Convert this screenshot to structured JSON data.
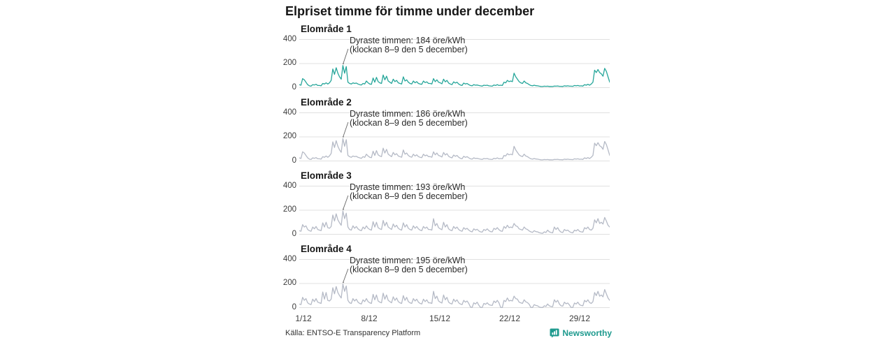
{
  "title": "Elpriset timme för timme under december",
  "footer": {
    "source": "Källa: ENTSO-E Transparency Platform",
    "brand": "Newsworthy"
  },
  "colors": {
    "accent_teal": "#26a69a",
    "series_gray": "#b5bac6",
    "grid": "#e0e0e0",
    "annotation_line": "#666666",
    "brand_teal": "#1e9a8e"
  },
  "chart_data": [
    {
      "type": "line",
      "title": "Elområde 1",
      "color": "#26a69a",
      "x_range": [
        "1/12",
        "31/12"
      ],
      "hours_per_step": 4,
      "x_ticks": [
        "1/12",
        "8/12",
        "15/12",
        "22/12",
        "29/12"
      ],
      "ylabel": "öre/kWh",
      "ylim": [
        0,
        400
      ],
      "y_ticks": [
        "400",
        "200",
        "0"
      ],
      "annotation": {
        "line1": "Dyraste timmen: 184 öre/kWh",
        "line2": "(klockan 8–9 den 5 december)",
        "peak_value": 184,
        "peak_index": 26
      },
      "values": [
        25,
        20,
        75,
        65,
        45,
        25,
        15,
        12,
        25,
        22,
        28,
        18,
        18,
        15,
        35,
        30,
        40,
        30,
        40,
        60,
        155,
        110,
        165,
        120,
        90,
        70,
        184,
        120,
        175,
        45,
        35,
        30,
        40,
        35,
        38,
        30,
        25,
        22,
        35,
        30,
        55,
        40,
        30,
        28,
        80,
        45,
        85,
        50,
        40,
        35,
        105,
        65,
        95,
        55,
        45,
        35,
        70,
        50,
        60,
        40,
        35,
        30,
        90,
        55,
        65,
        45,
        35,
        30,
        55,
        40,
        50,
        35,
        30,
        28,
        55,
        42,
        48,
        35,
        35,
        30,
        75,
        50,
        65,
        45,
        40,
        32,
        70,
        48,
        60,
        38,
        30,
        25,
        48,
        38,
        45,
        30,
        22,
        18,
        38,
        30,
        35,
        25,
        18,
        15,
        25,
        20,
        22,
        18,
        15,
        13,
        20,
        18,
        20,
        15,
        14,
        12,
        22,
        18,
        25,
        18,
        20,
        18,
        45,
        40,
        60,
        50,
        55,
        50,
        120,
        90,
        70,
        50,
        40,
        35,
        55,
        40,
        35,
        25,
        18,
        15,
        20,
        16,
        15,
        12,
        10,
        9,
        12,
        11,
        12,
        10,
        10,
        9,
        13,
        12,
        14,
        11,
        11,
        10,
        15,
        13,
        15,
        12,
        12,
        11,
        18,
        15,
        18,
        14,
        15,
        13,
        25,
        20,
        28,
        20,
        30,
        45,
        145,
        125,
        150,
        125,
        115,
        95,
        160,
        135,
        90,
        45
      ]
    },
    {
      "type": "line",
      "title": "Elområde 2",
      "color": "#b5bac6",
      "x_range": [
        "1/12",
        "31/12"
      ],
      "hours_per_step": 4,
      "x_ticks": [
        "1/12",
        "8/12",
        "15/12",
        "22/12",
        "29/12"
      ],
      "ylabel": "öre/kWh",
      "ylim": [
        0,
        400
      ],
      "y_ticks": [
        "400",
        "200",
        "0"
      ],
      "annotation": {
        "line1": "Dyraste timmen: 186 öre/kWh",
        "line2": "(klockan 8–9 den 5 december)",
        "peak_value": 186,
        "peak_index": 26
      },
      "values": [
        26,
        21,
        76,
        66,
        46,
        26,
        15,
        12,
        26,
        22,
        28,
        18,
        18,
        15,
        36,
        30,
        41,
        30,
        42,
        62,
        158,
        112,
        168,
        122,
        92,
        72,
        186,
        122,
        177,
        46,
        36,
        30,
        41,
        36,
        39,
        30,
        26,
        22,
        36,
        30,
        56,
        41,
        31,
        28,
        81,
        46,
        86,
        51,
        41,
        36,
        106,
        66,
        96,
        56,
        46,
        36,
        71,
        51,
        61,
        41,
        36,
        31,
        91,
        56,
        66,
        46,
        36,
        31,
        56,
        41,
        51,
        36,
        31,
        28,
        56,
        43,
        49,
        36,
        36,
        31,
        76,
        51,
        66,
        46,
        41,
        33,
        71,
        49,
        61,
        39,
        31,
        26,
        49,
        39,
        46,
        31,
        22,
        18,
        39,
        30,
        36,
        26,
        18,
        15,
        26,
        20,
        22,
        18,
        15,
        13,
        20,
        18,
        20,
        15,
        14,
        12,
        22,
        18,
        26,
        18,
        20,
        18,
        46,
        41,
        61,
        51,
        56,
        51,
        122,
        91,
        71,
        51,
        41,
        36,
        56,
        41,
        36,
        26,
        18,
        15,
        20,
        16,
        15,
        12,
        10,
        9,
        12,
        11,
        12,
        10,
        10,
        9,
        13,
        12,
        14,
        11,
        11,
        10,
        15,
        13,
        15,
        12,
        12,
        11,
        18,
        15,
        18,
        14,
        15,
        13,
        26,
        20,
        28,
        20,
        31,
        46,
        148,
        127,
        152,
        127,
        117,
        97,
        162,
        137,
        92,
        46
      ]
    },
    {
      "type": "line",
      "title": "Elområde 3",
      "color": "#b5bac6",
      "x_range": [
        "1/12",
        "31/12"
      ],
      "hours_per_step": 4,
      "x_ticks": [
        "1/12",
        "8/12",
        "15/12",
        "22/12",
        "29/12"
      ],
      "ylabel": "öre/kWh",
      "ylim": [
        0,
        400
      ],
      "y_ticks": [
        "400",
        "200",
        "0"
      ],
      "annotation": {
        "line1": "Dyraste timmen: 193 öre/kWh",
        "line2": "(klockan 8–9 den 5 december)",
        "peak_value": 193,
        "peak_index": 26
      },
      "values": [
        30,
        25,
        80,
        60,
        70,
        40,
        30,
        25,
        60,
        45,
        65,
        40,
        35,
        30,
        95,
        60,
        100,
        55,
        50,
        65,
        160,
        110,
        170,
        120,
        95,
        75,
        193,
        130,
        175,
        60,
        40,
        35,
        70,
        50,
        65,
        45,
        35,
        30,
        60,
        45,
        70,
        50,
        40,
        35,
        105,
        60,
        100,
        55,
        45,
        40,
        115,
        70,
        100,
        60,
        50,
        40,
        85,
        60,
        75,
        50,
        40,
        35,
        95,
        60,
        80,
        50,
        40,
        35,
        70,
        50,
        65,
        45,
        35,
        30,
        65,
        50,
        60,
        40,
        40,
        35,
        130,
        70,
        90,
        55,
        45,
        38,
        100,
        60,
        80,
        45,
        35,
        30,
        65,
        48,
        60,
        40,
        30,
        25,
        55,
        42,
        50,
        35,
        25,
        20,
        45,
        35,
        42,
        28,
        20,
        18,
        40,
        32,
        45,
        30,
        22,
        20,
        50,
        40,
        55,
        38,
        28,
        25,
        65,
        50,
        75,
        55,
        60,
        55,
        90,
        70,
        65,
        45,
        40,
        35,
        60,
        45,
        40,
        28,
        20,
        16,
        30,
        22,
        20,
        14,
        10,
        8,
        20,
        15,
        35,
        20,
        15,
        12,
        60,
        40,
        55,
        30,
        18,
        15,
        40,
        30,
        35,
        22,
        15,
        12,
        35,
        28,
        40,
        25,
        20,
        18,
        55,
        45,
        60,
        40,
        35,
        50,
        120,
        95,
        130,
        90,
        100,
        85,
        140,
        110,
        75,
        60
      ]
    },
    {
      "type": "line",
      "title": "Elområde 4",
      "color": "#b5bac6",
      "x_range": [
        "1/12",
        "31/12"
      ],
      "hours_per_step": 4,
      "x_ticks": [
        "1/12",
        "8/12",
        "15/12",
        "22/12",
        "29/12"
      ],
      "ylabel": "öre/kWh",
      "ylim": [
        0,
        400
      ],
      "y_ticks": [
        "400",
        "200",
        "0"
      ],
      "annotation": {
        "line1": "Dyraste timmen: 195 öre/kWh",
        "line2": "(klockan 8–9 den 5 december)",
        "peak_value": 195,
        "peak_index": 26
      },
      "values": [
        30,
        25,
        85,
        60,
        75,
        40,
        30,
        25,
        70,
        50,
        75,
        45,
        40,
        35,
        130,
        70,
        125,
        60,
        55,
        70,
        165,
        115,
        175,
        125,
        100,
        80,
        195,
        135,
        180,
        60,
        40,
        35,
        75,
        55,
        70,
        45,
        35,
        30,
        65,
        50,
        75,
        50,
        40,
        35,
        110,
        65,
        105,
        55,
        45,
        40,
        120,
        70,
        105,
        60,
        50,
        40,
        90,
        60,
        80,
        50,
        40,
        35,
        100,
        60,
        85,
        50,
        40,
        35,
        75,
        55,
        70,
        45,
        35,
        30,
        70,
        50,
        65,
        40,
        40,
        35,
        135,
        75,
        95,
        55,
        45,
        38,
        105,
        65,
        85,
        45,
        35,
        30,
        70,
        50,
        65,
        40,
        30,
        25,
        60,
        45,
        55,
        35,
        5,
        2,
        40,
        30,
        45,
        20,
        2,
        1,
        35,
        28,
        40,
        25,
        20,
        18,
        55,
        42,
        60,
        40,
        2,
        1,
        60,
        50,
        80,
        55,
        60,
        55,
        95,
        75,
        70,
        45,
        40,
        35,
        65,
        48,
        42,
        28,
        2,
        1,
        25,
        18,
        15,
        5,
        1,
        1,
        15,
        10,
        30,
        15,
        10,
        8,
        65,
        45,
        60,
        30,
        15,
        12,
        45,
        32,
        38,
        22,
        2,
        1,
        38,
        30,
        45,
        25,
        18,
        15,
        60,
        48,
        65,
        42,
        35,
        50,
        125,
        100,
        135,
        95,
        105,
        90,
        150,
        115,
        80,
        60
      ]
    }
  ]
}
